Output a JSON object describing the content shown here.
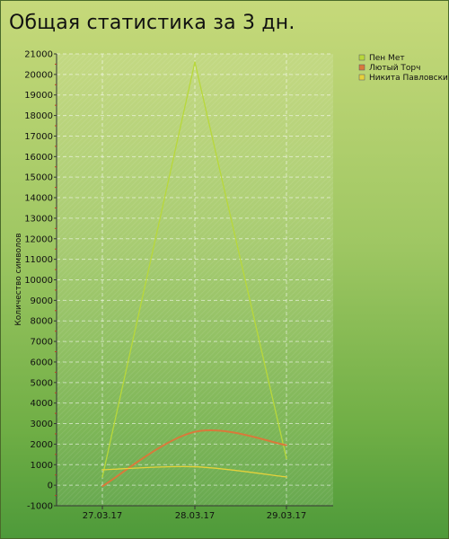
{
  "chart_data": {
    "type": "line",
    "title": "Общая статистика за 3 дн.",
    "xlabel": "",
    "ylabel": "Количество символов",
    "categories": [
      "27.03.17",
      "28.03.17",
      "29.03.17"
    ],
    "ylim": [
      -1000,
      21000
    ],
    "yticks": [
      -1000,
      0,
      1000,
      2000,
      3000,
      4000,
      5000,
      6000,
      7000,
      8000,
      9000,
      10000,
      11000,
      12000,
      13000,
      14000,
      15000,
      16000,
      17000,
      18000,
      19000,
      20000,
      21000
    ],
    "grid": true,
    "legend": "top-right",
    "series": [
      {
        "name": "Пен Мет",
        "values": [
          400,
          20600,
          1300
        ],
        "color": "#b8d83a",
        "smooth": false
      },
      {
        "name": "Лютый Торч",
        "values": [
          -50,
          2600,
          1950
        ],
        "color": "#d9793a",
        "smooth": true
      },
      {
        "name": "Никита Павловский",
        "values": [
          750,
          900,
          400
        ],
        "color": "#e6d23a",
        "smooth": true
      }
    ]
  }
}
